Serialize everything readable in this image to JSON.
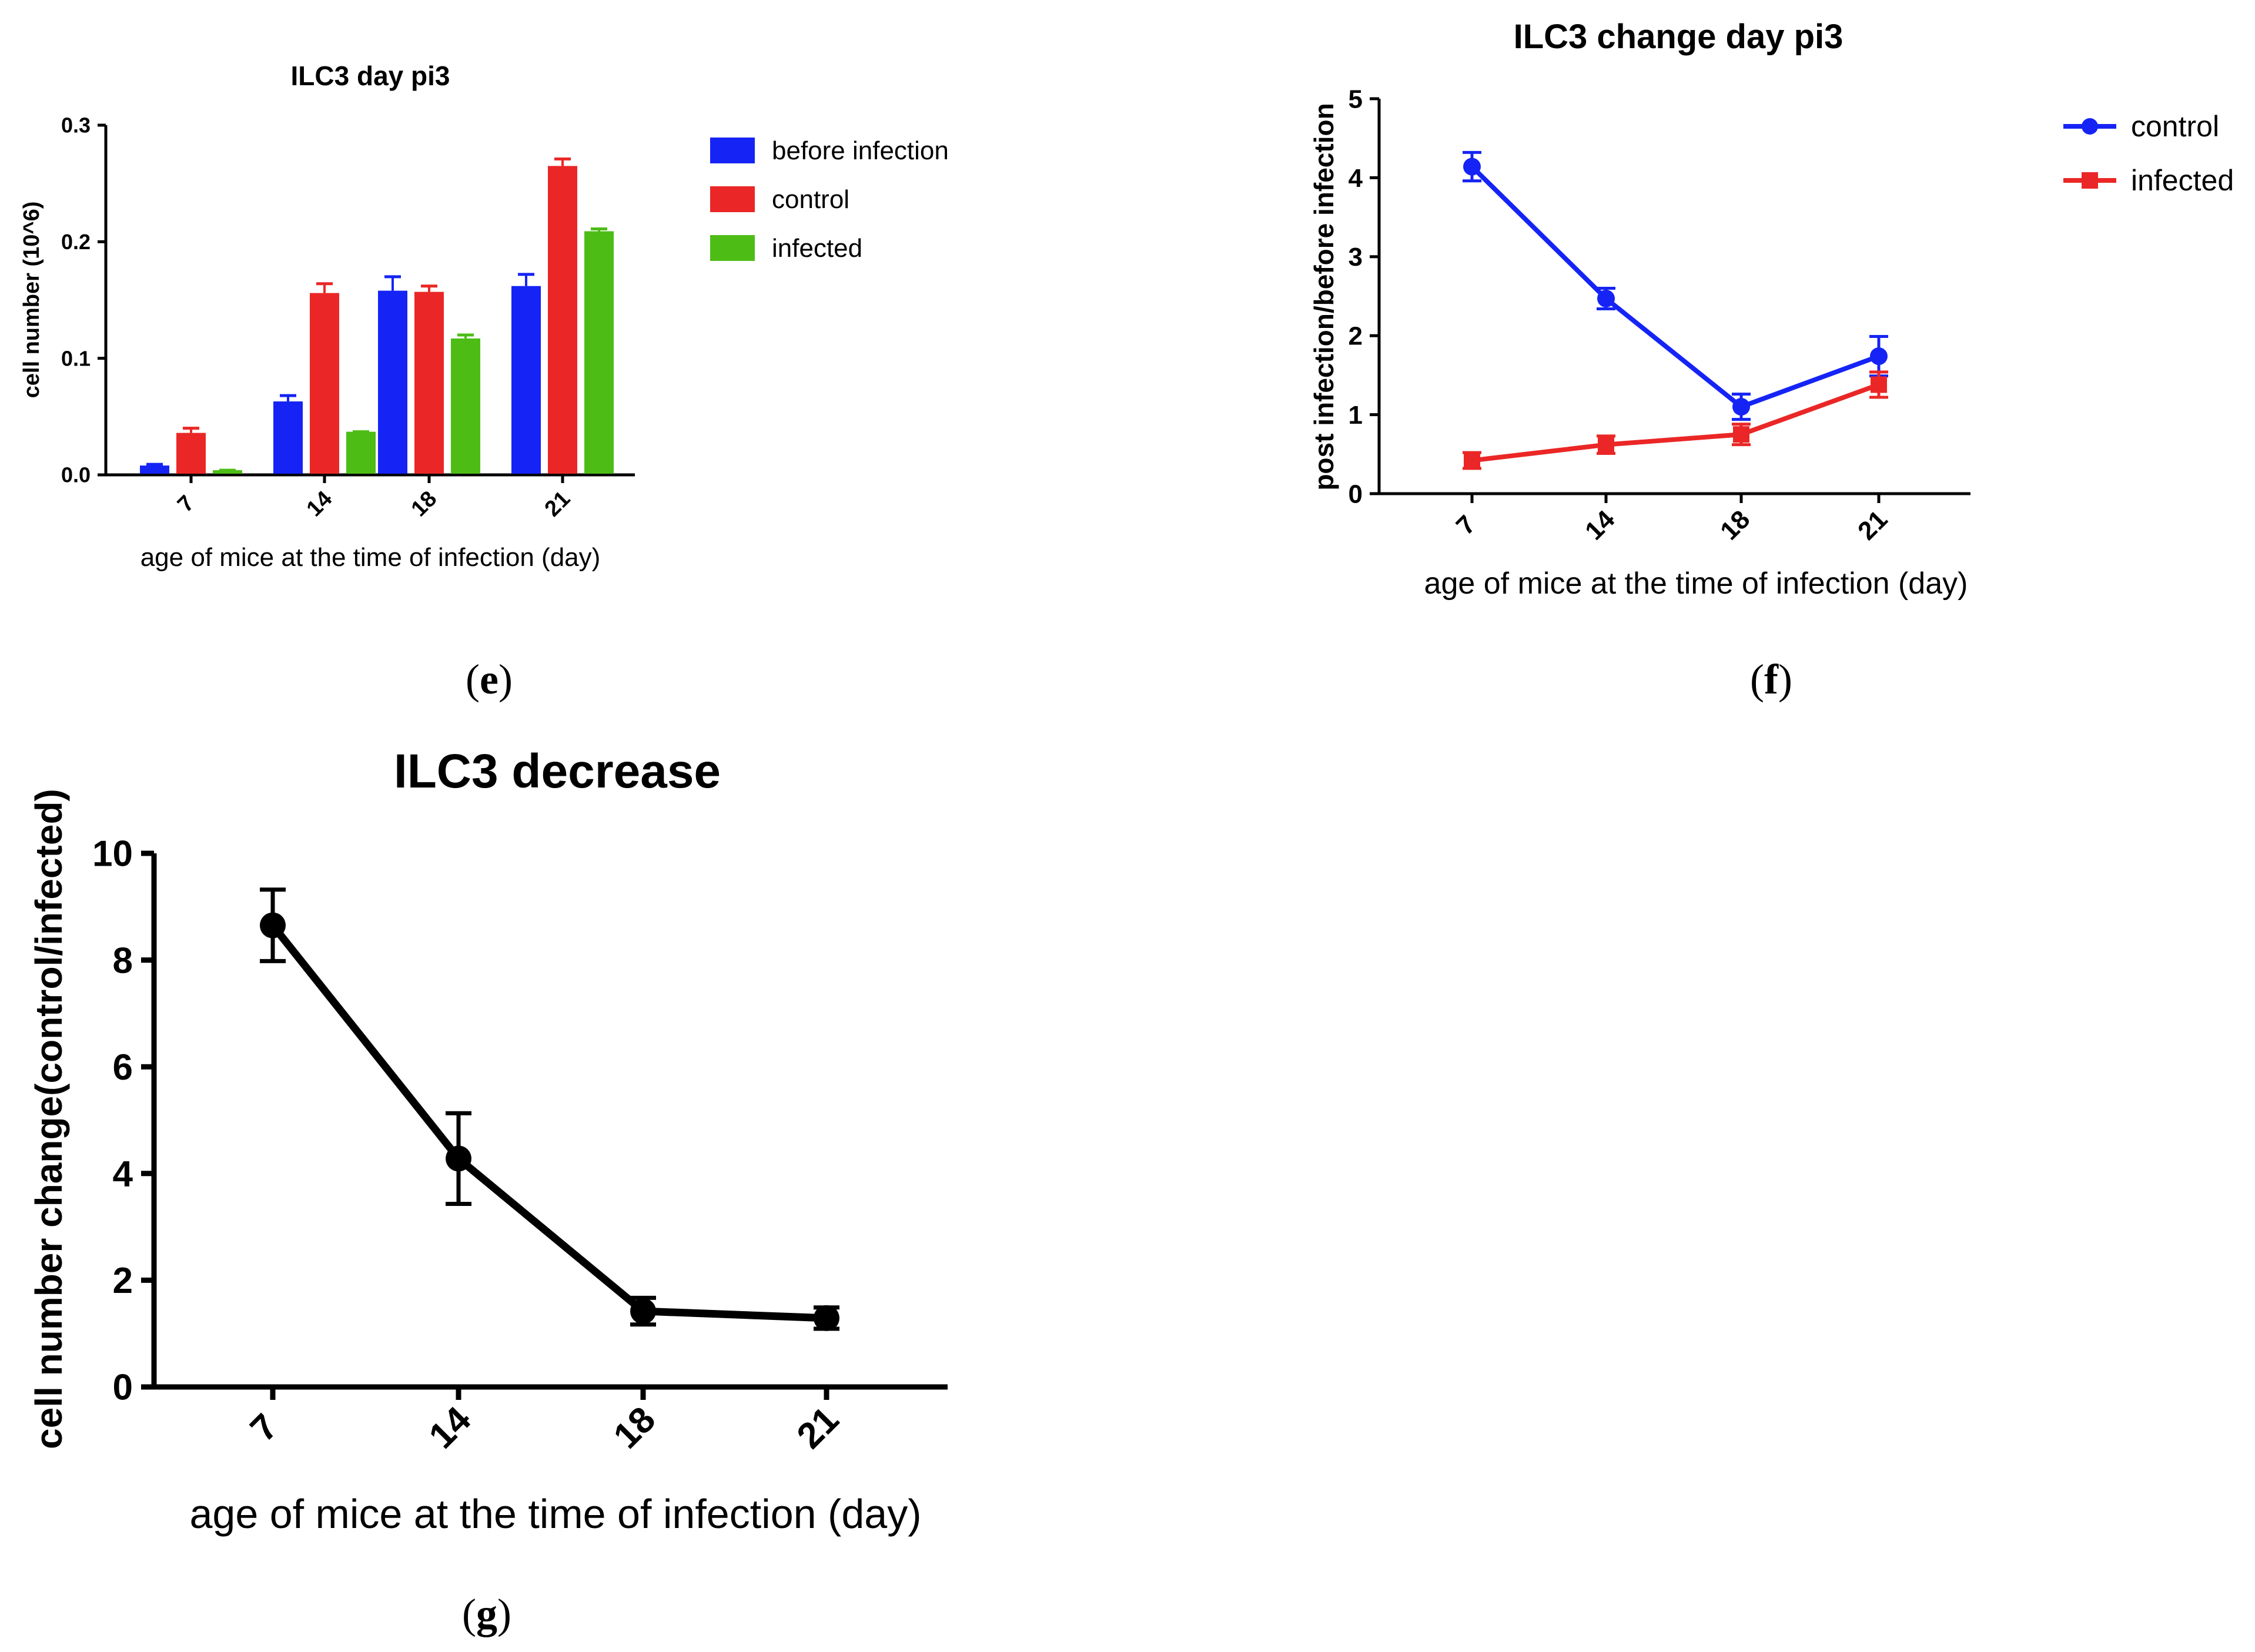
{
  "panel_labels": {
    "e": "e",
    "f": "f",
    "g": "g"
  },
  "chart_data": [
    {
      "id": "e",
      "type": "bar",
      "title": "ILC3  day pi3",
      "xlabel": "age of mice at the time of infection (day)",
      "ylabel": "cell number (10^6)",
      "categories": [
        "7",
        "14",
        "18",
        "21"
      ],
      "ylim": [
        0,
        0.3
      ],
      "yticks": [
        "0.0",
        "0.1",
        "0.2",
        "0.3"
      ],
      "series": [
        {
          "name": "before infection",
          "color": "#1524f5",
          "values": [
            0.008,
            0.063,
            0.158,
            0.162
          ],
          "errors": [
            0.001,
            0.005,
            0.012,
            0.01
          ]
        },
        {
          "name": "control",
          "color": "#ea2726",
          "values": [
            0.036,
            0.156,
            0.157,
            0.265
          ],
          "errors": [
            0.004,
            0.008,
            0.005,
            0.006
          ]
        },
        {
          "name": "infected",
          "color": "#4dbd16",
          "values": [
            0.004,
            0.037,
            0.117,
            0.209
          ],
          "errors": [
            0.0,
            0.0,
            0.003,
            0.002
          ]
        }
      ],
      "legend": "right"
    },
    {
      "id": "f",
      "type": "line",
      "title": "ILC3 change  day pi3",
      "xlabel": "age of mice at the time of infection (day)",
      "ylabel": "post infection/before infection",
      "categories": [
        "7",
        "14",
        "18",
        "21"
      ],
      "ylim": [
        0,
        5
      ],
      "yticks": [
        "0",
        "1",
        "2",
        "3",
        "4",
        "5"
      ],
      "series": [
        {
          "name": "control",
          "color": "#1524f5",
          "marker": "circle",
          "values": [
            4.14,
            2.47,
            1.1,
            1.74
          ],
          "errors": [
            0.18,
            0.13,
            0.16,
            0.25
          ]
        },
        {
          "name": "infected",
          "color": "#ea2726",
          "marker": "square",
          "values": [
            0.42,
            0.62,
            0.75,
            1.38
          ],
          "errors": [
            0.1,
            0.11,
            0.13,
            0.16
          ]
        }
      ],
      "legend": "top-right"
    },
    {
      "id": "g",
      "type": "line",
      "title": "ILC3 decrease",
      "xlabel": "age of mice at the time of infection (day)",
      "ylabel": "cell number change(control/infected)",
      "categories": [
        "7",
        "14",
        "18",
        "21"
      ],
      "ylim": [
        0,
        10
      ],
      "yticks": [
        "0",
        "2",
        "4",
        "6",
        "8",
        "10"
      ],
      "series": [
        {
          "name": "ILC3 decrease",
          "color": "#000000",
          "marker": "circle",
          "values": [
            8.65,
            4.28,
            1.42,
            1.29
          ],
          "errors": [
            0.67,
            0.85,
            0.25,
            0.2
          ]
        }
      ]
    }
  ]
}
